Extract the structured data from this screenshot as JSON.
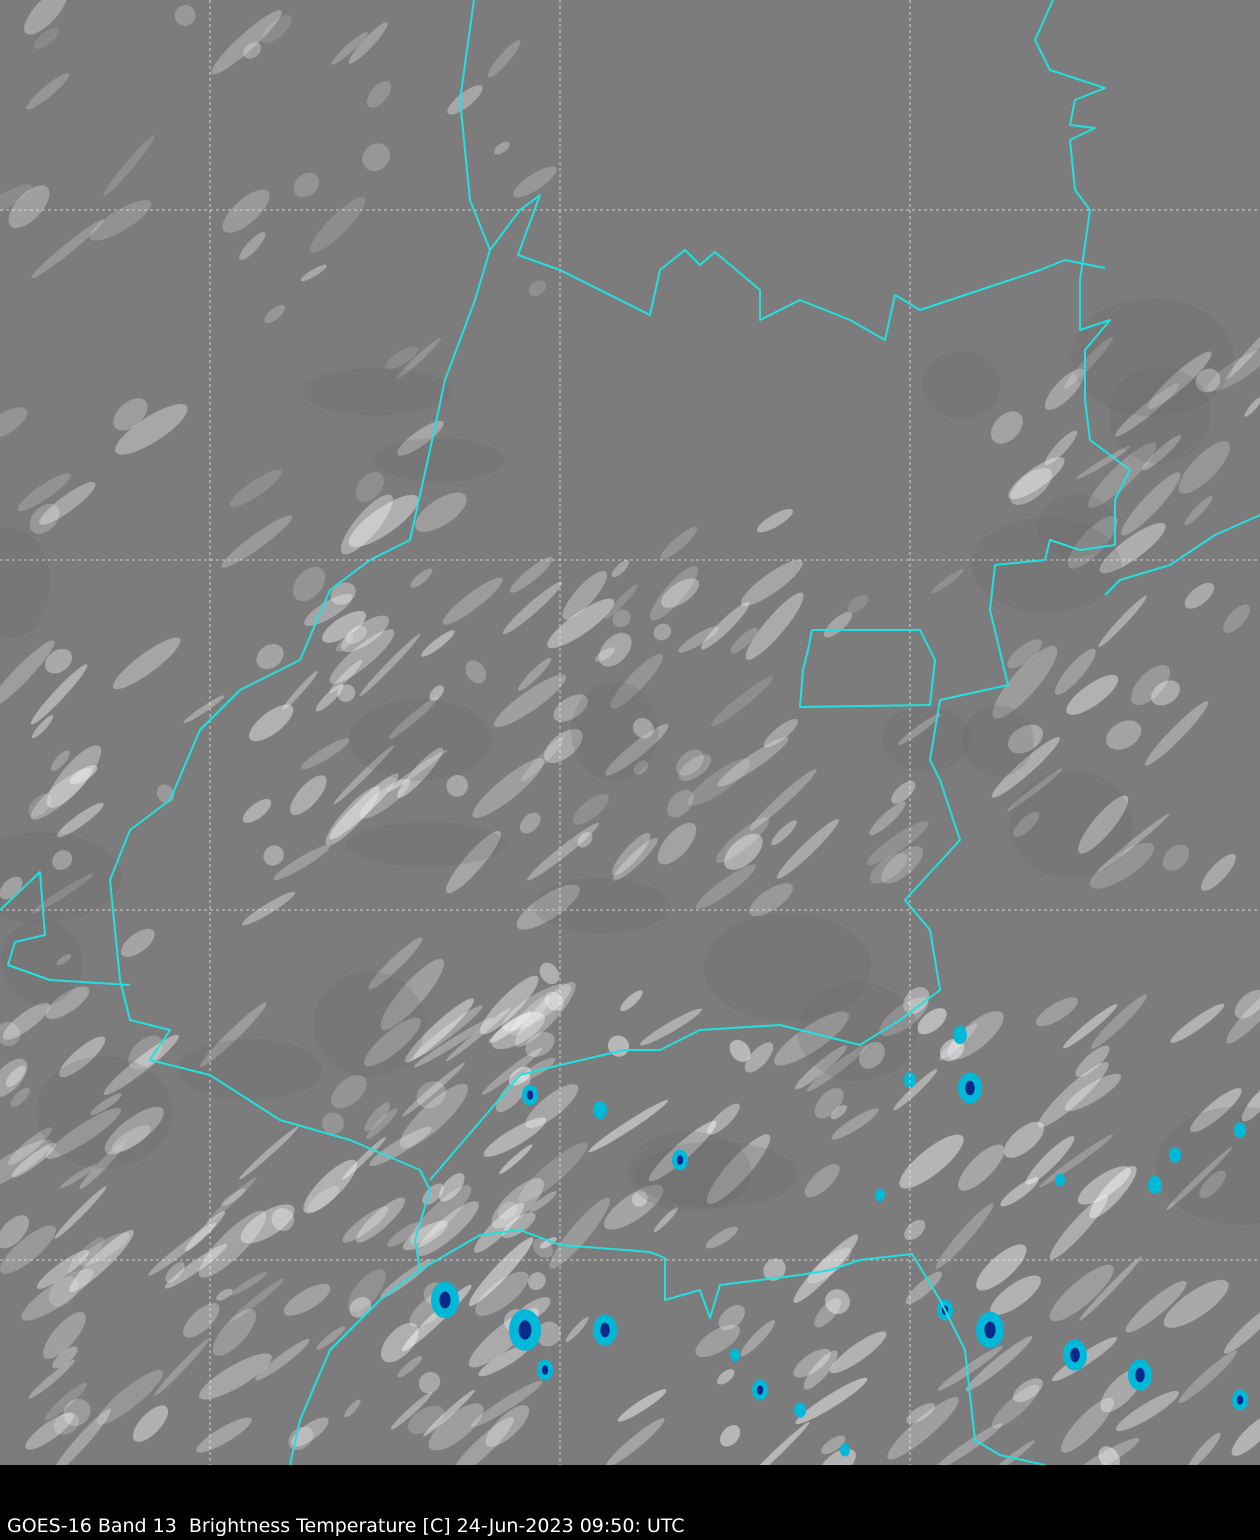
{
  "caption": "GOES-16 Band 13  Brightness Temperature [C] 24-Jun-2023 09:50: UTC",
  "map": {
    "imagery": "infrared brightness temperature, grayscale with cold cloud tops colored cyan to dark blue",
    "gridlines": "dashed white latitude/longitude lines",
    "colors": {
      "background_gray": "#7c7c7c",
      "cloud_white": "#ffffff",
      "border": "#22e0e0",
      "cold_cyan": "#00b8d8",
      "coldest_blue": "#0a2a8a",
      "caption_bar": "#000000"
    }
  }
}
